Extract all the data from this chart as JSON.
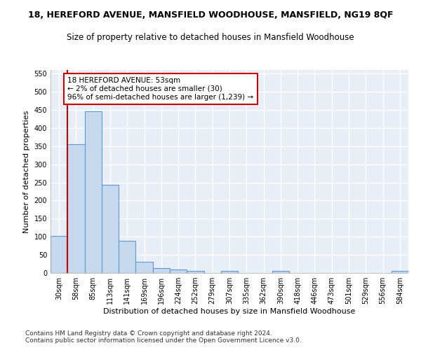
{
  "title": "18, HEREFORD AVENUE, MANSFIELD WOODHOUSE, MANSFIELD, NG19 8QF",
  "subtitle": "Size of property relative to detached houses in Mansfield Woodhouse",
  "xlabel": "Distribution of detached houses by size in Mansfield Woodhouse",
  "ylabel": "Number of detached properties",
  "categories": [
    "30sqm",
    "58sqm",
    "85sqm",
    "113sqm",
    "141sqm",
    "169sqm",
    "196sqm",
    "224sqm",
    "252sqm",
    "279sqm",
    "307sqm",
    "335sqm",
    "362sqm",
    "390sqm",
    "418sqm",
    "446sqm",
    "473sqm",
    "501sqm",
    "529sqm",
    "556sqm",
    "584sqm"
  ],
  "values": [
    102,
    355,
    447,
    243,
    88,
    30,
    14,
    9,
    6,
    0,
    6,
    0,
    0,
    6,
    0,
    0,
    0,
    0,
    0,
    0,
    6
  ],
  "bar_color": "#c5d8ee",
  "bar_edgecolor": "#5b9bd5",
  "vline_x_index": 1,
  "vline_color": "#cc0000",
  "annotation_text": "18 HEREFORD AVENUE: 53sqm\n← 2% of detached houses are smaller (30)\n96% of semi-detached houses are larger (1,239) →",
  "annotation_box_facecolor": "#ffffff",
  "annotation_box_edgecolor": "#cc0000",
  "ylim": [
    0,
    560
  ],
  "yticks": [
    0,
    50,
    100,
    150,
    200,
    250,
    300,
    350,
    400,
    450,
    500,
    550
  ],
  "plot_bg_color": "#e8eef6",
  "grid_color": "#ffffff",
  "footer_line1": "Contains HM Land Registry data © Crown copyright and database right 2024.",
  "footer_line2": "Contains public sector information licensed under the Open Government Licence v3.0.",
  "title_fontsize": 9,
  "subtitle_fontsize": 8.5,
  "axis_label_fontsize": 8,
  "tick_fontsize": 7,
  "annotation_fontsize": 7.5,
  "footer_fontsize": 6.5
}
